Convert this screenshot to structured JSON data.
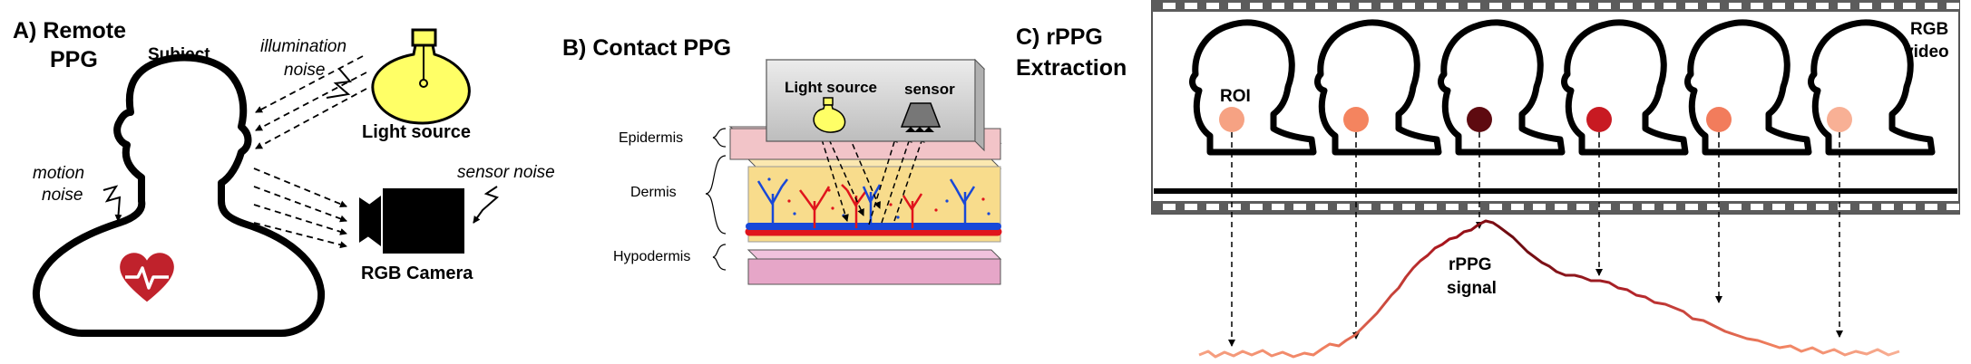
{
  "panel_a": {
    "title_line1": "A) Remote",
    "title_line2": "PPG",
    "subject_label": "Subject",
    "illumination_noise_line1": "illumination",
    "illumination_noise_line2": "noise",
    "light_source_label": "Light source",
    "motion_noise_line1": "motion",
    "motion_noise_line2": "noise",
    "sensor_noise_label": "sensor noise",
    "camera_label": "RGB Camera"
  },
  "panel_b": {
    "title": "B) Contact PPG",
    "light_source_label": "Light source",
    "sensor_label": "sensor",
    "layers": [
      "Epidermis",
      "Dermis",
      "Hypodermis"
    ]
  },
  "panel_c": {
    "title_line1": "C) rPPG",
    "title_line2": "Extraction",
    "roi_label": "ROI",
    "video_label_line1": "RGB",
    "video_label_line2": "video",
    "signal_label_line1": "rPPG",
    "signal_label_line2": "signal",
    "roi_colors": [
      "#f6a283",
      "#f4845f",
      "#5e0a10",
      "#c81a22",
      "#f27c5c",
      "#f8b095"
    ]
  },
  "colors": {
    "bulb_fill": "#ffff66",
    "heart": "#c0222c",
    "epidermis": "#f2c4c8",
    "dermis": "#f8dc8c",
    "hypodermis": "#e6a6c8",
    "box_gray": "#d4d4d4",
    "artery": "#e0141c",
    "vein": "#1848d8",
    "film": "#5c5c5c",
    "signal_dark": "#7a0d12",
    "signal_light": "#f6a283"
  }
}
